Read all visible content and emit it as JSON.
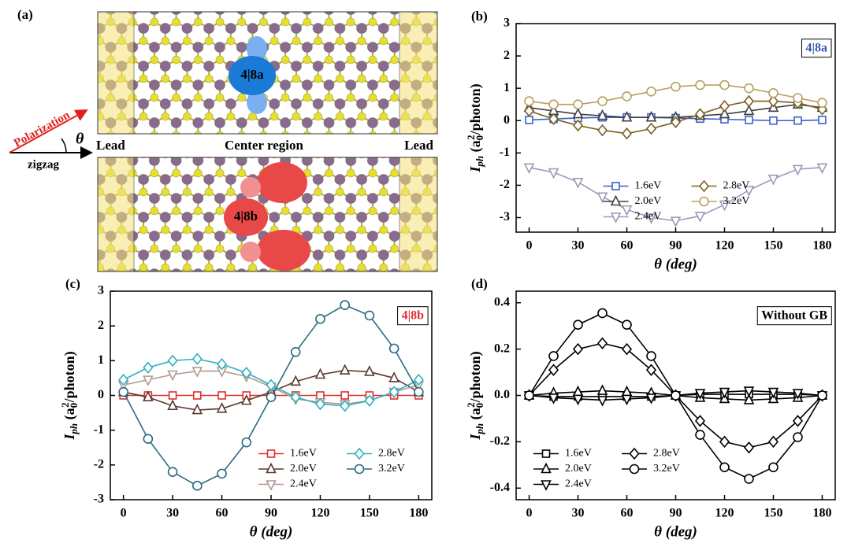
{
  "diagram": {
    "panel": "(a)",
    "defect_a": "4|8a",
    "defect_b": "4|8b",
    "lead_left": "Lead",
    "center": "Center region",
    "lead_right": "Lead",
    "polarization": "Polarization",
    "angle": "θ",
    "direction": "zigzag"
  },
  "chart_data": [
    {
      "type": "line",
      "panel": "(b)",
      "annotation": "4|8a",
      "annotation_color": "#3a55b0",
      "xlabel": "θ  (deg)",
      "ylabel": [
        "I",
        "ph",
        " (a",
        "0",
        "2",
        "/photon)"
      ],
      "x": [
        0,
        15,
        30,
        45,
        60,
        75,
        90,
        105,
        120,
        135,
        150,
        165,
        180
      ],
      "xlim": [
        -8,
        188
      ],
      "xticks": [
        0,
        30,
        60,
        90,
        120,
        150,
        180
      ],
      "ylim": [
        -3.45,
        3
      ],
      "yticks": [
        -3,
        -2,
        -1,
        0,
        1,
        2,
        3
      ],
      "legend": "lower center",
      "series": [
        {
          "name": "1.6eV",
          "color": "#3a5fcd",
          "marker": "square",
          "values": [
            0.02,
            0.05,
            0.08,
            0.1,
            0.1,
            0.1,
            0.08,
            0.06,
            0.04,
            0.02,
            0.0,
            0.0,
            0.02
          ]
        },
        {
          "name": "2.0eV",
          "color": "#404040",
          "marker": "triangle-up",
          "values": [
            0.4,
            0.3,
            0.2,
            0.15,
            0.1,
            0.1,
            0.1,
            0.15,
            0.2,
            0.3,
            0.4,
            0.5,
            0.4
          ]
        },
        {
          "name": "2.4eV",
          "color": "#9a9ab8",
          "marker": "triangle-down",
          "values": [
            -1.45,
            -1.6,
            -1.9,
            -2.35,
            -2.75,
            -3.0,
            -3.1,
            -2.95,
            -2.6,
            -2.15,
            -1.8,
            -1.5,
            -1.45
          ]
        },
        {
          "name": "2.8eV",
          "color": "#7a6020",
          "marker": "diamond",
          "values": [
            0.3,
            0.05,
            -0.15,
            -0.3,
            -0.4,
            -0.25,
            -0.05,
            0.2,
            0.45,
            0.6,
            0.6,
            0.55,
            0.35
          ]
        },
        {
          "name": "3.2eV",
          "color": "#b8a060",
          "marker": "circle",
          "values": [
            0.6,
            0.5,
            0.5,
            0.6,
            0.75,
            0.9,
            1.05,
            1.1,
            1.1,
            1.0,
            0.85,
            0.7,
            0.55
          ]
        }
      ]
    },
    {
      "type": "line",
      "panel": "(c)",
      "annotation": "4|8b",
      "annotation_color": "#e03030",
      "xlabel": "θ  (deg)",
      "ylabel": [
        "I",
        "ph",
        " (a",
        "0",
        "2",
        "/photon)"
      ],
      "x": [
        0,
        15,
        30,
        45,
        60,
        75,
        90,
        105,
        120,
        135,
        150,
        165,
        180
      ],
      "xlim": [
        -8,
        188
      ],
      "xticks": [
        0,
        30,
        60,
        90,
        120,
        150,
        180
      ],
      "ylim": [
        -3,
        3
      ],
      "yticks": [
        -3,
        -2,
        -1,
        0,
        1,
        2,
        3
      ],
      "legend": "lower right",
      "series": [
        {
          "name": "1.6eV",
          "color": "#e03030",
          "marker": "square",
          "values": [
            0,
            0,
            0,
            0,
            0,
            0,
            0,
            0,
            0,
            0,
            0,
            0,
            0
          ]
        },
        {
          "name": "2.0eV",
          "color": "#5a3a30",
          "marker": "triangle-up",
          "values": [
            0.1,
            -0.05,
            -0.3,
            -0.42,
            -0.38,
            -0.15,
            0.1,
            0.4,
            0.6,
            0.72,
            0.68,
            0.5,
            0.1
          ]
        },
        {
          "name": "2.4eV",
          "color": "#b09a90",
          "marker": "triangle-down",
          "values": [
            0.3,
            0.45,
            0.6,
            0.7,
            0.7,
            0.55,
            0.25,
            -0.1,
            -0.2,
            -0.25,
            -0.15,
            0.1,
            0.3
          ]
        },
        {
          "name": "2.8eV",
          "color": "#30b0c0",
          "marker": "diamond",
          "values": [
            0.45,
            0.8,
            1.0,
            1.05,
            0.9,
            0.65,
            0.3,
            -0.05,
            -0.25,
            -0.3,
            -0.15,
            0.1,
            0.45
          ]
        },
        {
          "name": "3.2eV",
          "color": "#2a6a80",
          "marker": "circle",
          "values": [
            0.1,
            -1.25,
            -2.2,
            -2.6,
            -2.25,
            -1.35,
            -0.05,
            1.25,
            2.2,
            2.6,
            2.3,
            1.35,
            0.1
          ]
        }
      ]
    },
    {
      "type": "line",
      "panel": "(d)",
      "annotation": "Without GB",
      "annotation_color": "#000000",
      "xlabel": "θ  (deg)",
      "ylabel": [
        "I",
        "ph",
        " (a",
        "0",
        "2",
        "/photon)"
      ],
      "x": [
        0,
        15,
        30,
        45,
        60,
        75,
        90,
        105,
        120,
        135,
        150,
        165,
        180
      ],
      "xlim": [
        -8,
        188
      ],
      "xticks": [
        0,
        30,
        60,
        90,
        120,
        150,
        180
      ],
      "ylim": [
        -0.45,
        0.45
      ],
      "yticks": [
        -0.4,
        -0.2,
        {
          "value": 0,
          "label": "0.0"
        },
        0.2,
        0.4
      ],
      "legend": "lower left",
      "series": [
        {
          "name": "1.6eV",
          "color": "#000000",
          "marker": "square",
          "values": [
            0,
            -0.005,
            -0.005,
            -0.005,
            -0.005,
            -0.005,
            0,
            0.005,
            0.005,
            0.005,
            0.005,
            0.005,
            0
          ]
        },
        {
          "name": "2.0eV",
          "color": "#000000",
          "marker": "triangle-up",
          "values": [
            0,
            0.01,
            0.015,
            0.02,
            0.015,
            0.01,
            0,
            -0.01,
            -0.015,
            -0.02,
            -0.015,
            -0.01,
            0
          ]
        },
        {
          "name": "2.4eV",
          "color": "#000000",
          "marker": "triangle-down",
          "values": [
            0,
            -0.01,
            -0.015,
            -0.02,
            -0.015,
            -0.01,
            0,
            0.01,
            0.015,
            0.02,
            0.015,
            0.01,
            0
          ]
        },
        {
          "name": "2.8eV",
          "color": "#000000",
          "marker": "diamond",
          "values": [
            0,
            0.11,
            0.2,
            0.225,
            0.2,
            0.11,
            0,
            -0.11,
            -0.2,
            -0.225,
            -0.2,
            -0.11,
            0
          ]
        },
        {
          "name": "3.2eV",
          "color": "#000000",
          "marker": "circle",
          "values": [
            0,
            0.17,
            0.305,
            0.355,
            0.305,
            0.17,
            0,
            -0.17,
            -0.31,
            -0.36,
            -0.31,
            -0.18,
            0
          ]
        }
      ]
    }
  ]
}
